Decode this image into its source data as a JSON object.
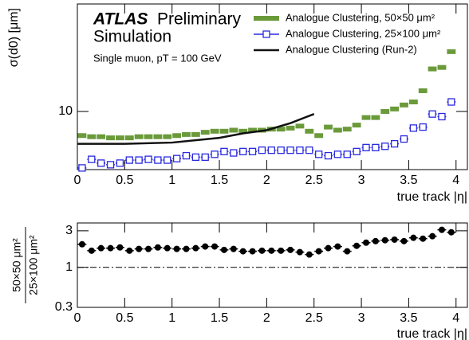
{
  "chart_data": [
    {
      "type": "errorbar",
      "log_y": true,
      "legend": "upper right",
      "atlas_label": "ATLAS",
      "status": "Preliminary",
      "subtitle": "Simulation",
      "annotation": "Single muon, pT = 100 GeV",
      "xlabel": "true track |η|",
      "ylabel": "σ(d0) [μm]",
      "xlim": [
        0,
        4.12
      ],
      "xticks": [
        0,
        0.5,
        1,
        1.5,
        2,
        2.5,
        3,
        3.5,
        4
      ],
      "ylim": [
        5,
        36
      ],
      "yticks": [
        10
      ],
      "series": [
        {
          "name": "Analogue Clustering, 50×50 μm²",
          "color": "#6a9a3a",
          "marker": "filled-square",
          "x": [
            0.05,
            0.15,
            0.25,
            0.35,
            0.45,
            0.55,
            0.65,
            0.75,
            0.85,
            0.95,
            1.05,
            1.15,
            1.25,
            1.35,
            1.45,
            1.55,
            1.65,
            1.75,
            1.85,
            1.95,
            2.05,
            2.15,
            2.25,
            2.35,
            2.45,
            2.55,
            2.65,
            2.75,
            2.85,
            2.95,
            3.05,
            3.15,
            3.25,
            3.35,
            3.45,
            3.55,
            3.65,
            3.75,
            3.85,
            3.95
          ],
          "values": [
            7.5,
            7.4,
            7.4,
            7.3,
            7.3,
            7.3,
            7.4,
            7.4,
            7.4,
            7.4,
            7.5,
            7.6,
            7.6,
            7.8,
            7.9,
            7.9,
            8.0,
            7.9,
            8.0,
            8.0,
            8.1,
            8.1,
            8.2,
            8.4,
            7.9,
            7.5,
            8.3,
            8.0,
            8.1,
            8.5,
            9.3,
            9.3,
            10,
            10.3,
            10.8,
            11.2,
            12.8,
            16.6,
            16.9,
            20.4
          ]
        },
        {
          "name": "Analogue Clustering, 25×100 μm²",
          "color": "#2a2ae0",
          "marker": "open-square",
          "x": [
            0.05,
            0.15,
            0.25,
            0.35,
            0.45,
            0.55,
            0.65,
            0.75,
            0.85,
            0.95,
            1.05,
            1.15,
            1.25,
            1.35,
            1.45,
            1.55,
            1.65,
            1.75,
            1.85,
            1.95,
            2.05,
            2.15,
            2.25,
            2.35,
            2.45,
            2.55,
            2.65,
            2.75,
            2.85,
            2.95,
            3.05,
            3.15,
            3.25,
            3.35,
            3.45,
            3.55,
            3.65,
            3.75,
            3.85,
            3.95
          ],
          "values": [
            5.1,
            5.65,
            5.4,
            5.3,
            5.4,
            5.6,
            5.6,
            5.65,
            5.6,
            5.6,
            5.7,
            5.9,
            5.8,
            5.8,
            6.0,
            6.2,
            6.1,
            6.2,
            6.2,
            6.3,
            6.3,
            6.3,
            6.3,
            6.3,
            6.3,
            6.0,
            5.9,
            6.0,
            6.0,
            6.2,
            6.5,
            6.5,
            6.6,
            6.8,
            7.2,
            8.2,
            8.3,
            9.7,
            9.4,
            11.2
          ]
        },
        {
          "name": "Analogue Clustering (Run-2)",
          "color": "#111111",
          "marker": "line",
          "x": [
            0,
            0.5,
            1,
            1.5,
            1.75,
            2,
            2.25,
            2.5
          ],
          "values": [
            6.8,
            6.8,
            6.9,
            7.3,
            7.7,
            8.0,
            8.7,
            9.7
          ]
        }
      ]
    },
    {
      "type": "errorbar",
      "log_y": true,
      "xlabel": "true track |η|",
      "ylabel_numerator": "50×50 μm²",
      "ylabel_denominator": "25×100 μm²",
      "xlim": [
        0,
        4.12
      ],
      "xticks": [
        0,
        0.5,
        1,
        1.5,
        2,
        2.5,
        3,
        3.5,
        4
      ],
      "ylim": [
        0.3,
        3.8
      ],
      "yticks": [
        0.3,
        1,
        3
      ],
      "reference_line": 1,
      "series": [
        {
          "color": "#000000",
          "marker": "circle",
          "x": [
            0.05,
            0.15,
            0.25,
            0.35,
            0.45,
            0.55,
            0.65,
            0.75,
            0.85,
            0.95,
            1.05,
            1.15,
            1.25,
            1.35,
            1.45,
            1.55,
            1.65,
            1.75,
            1.85,
            1.95,
            2.05,
            2.15,
            2.25,
            2.35,
            2.45,
            2.55,
            2.65,
            2.75,
            2.85,
            2.95,
            3.05,
            3.15,
            3.25,
            3.35,
            3.45,
            3.55,
            3.65,
            3.75,
            3.85,
            3.95
          ],
          "values": [
            2.0,
            1.65,
            1.78,
            1.78,
            1.82,
            1.65,
            1.74,
            1.74,
            1.82,
            1.78,
            1.74,
            1.74,
            1.78,
            1.87,
            1.87,
            1.69,
            1.74,
            1.62,
            1.62,
            1.65,
            1.65,
            1.65,
            1.69,
            1.58,
            1.47,
            1.62,
            1.78,
            1.87,
            1.62,
            1.91,
            2.1,
            2.2,
            2.26,
            2.3,
            2.2,
            2.43,
            2.37,
            2.55,
            3.09,
            2.87
          ]
        }
      ]
    }
  ]
}
